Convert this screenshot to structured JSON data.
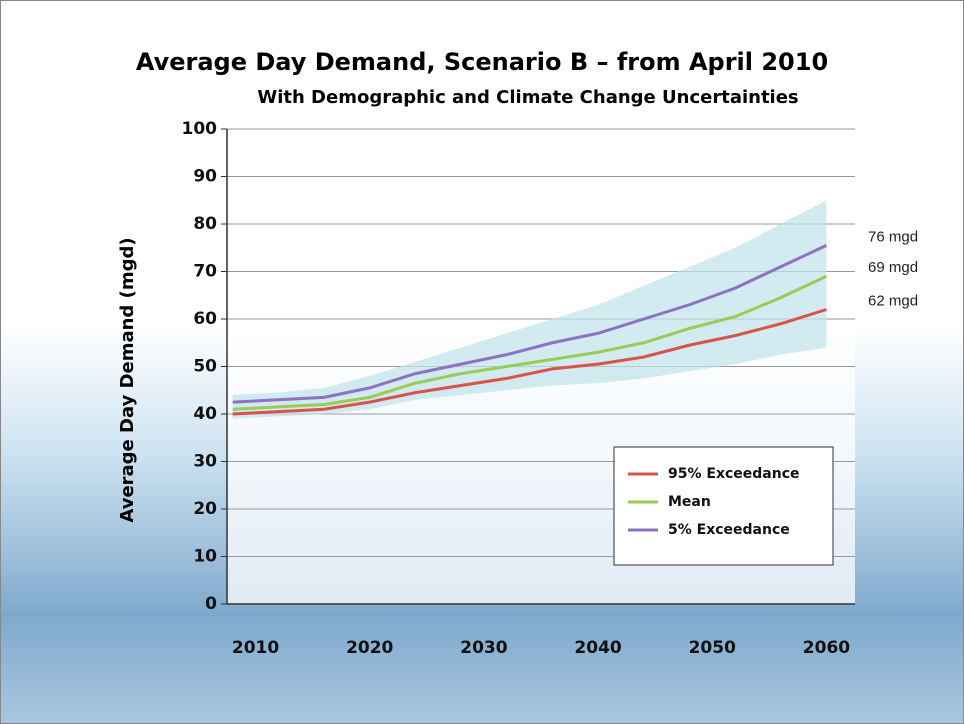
{
  "chart_data": {
    "type": "line",
    "title": "Average Day Demand, Scenario B – from April 2010",
    "subtitle": "With Demographic and Climate Change Uncertainties",
    "y_label": "Average Day Demand (mgd)",
    "x": [
      2008,
      2012,
      2016,
      2020,
      2024,
      2028,
      2032,
      2036,
      2040,
      2044,
      2048,
      2052,
      2056,
      2060
    ],
    "xlim": [
      2007.5,
      2062.5
    ],
    "xticks": [
      2010,
      2020,
      2030,
      2040,
      2050,
      2060
    ],
    "ylim": [
      0,
      100
    ],
    "yticks": [
      0,
      10,
      20,
      30,
      40,
      50,
      60,
      70,
      80,
      90,
      100
    ],
    "grid": true,
    "legend": "lower right",
    "band": {
      "color": "#bfe3ea",
      "upper": [
        44,
        44.5,
        45.5,
        48,
        51,
        54,
        57,
        60,
        63,
        67,
        71,
        75,
        80,
        85
      ],
      "lower": [
        39,
        39.5,
        40,
        41,
        43,
        44,
        45,
        46,
        46.5,
        47.5,
        49,
        50.5,
        52.5,
        54
      ]
    },
    "series": [
      {
        "name": "95% Exceedance",
        "color": "#d9534a",
        "end_label": "62 mgd",
        "values": [
          40,
          40.5,
          41,
          42.5,
          44.5,
          46,
          47.5,
          49.5,
          50.5,
          52,
          54.5,
          56.5,
          59,
          62
        ]
      },
      {
        "name": "Mean",
        "color": "#9acb55",
        "end_label": "69 mgd",
        "values": [
          41,
          41.5,
          42,
          43.5,
          46.5,
          48.5,
          50,
          51.5,
          53,
          55,
          58,
          60.5,
          64.5,
          69
        ]
      },
      {
        "name": "5% Exceedance",
        "color": "#8c72c0",
        "end_label": "76 mgd",
        "values": [
          42.5,
          43,
          43.5,
          45.5,
          48.5,
          50.5,
          52.5,
          55,
          57,
          60,
          63,
          66.5,
          71,
          75.5
        ]
      }
    ]
  }
}
